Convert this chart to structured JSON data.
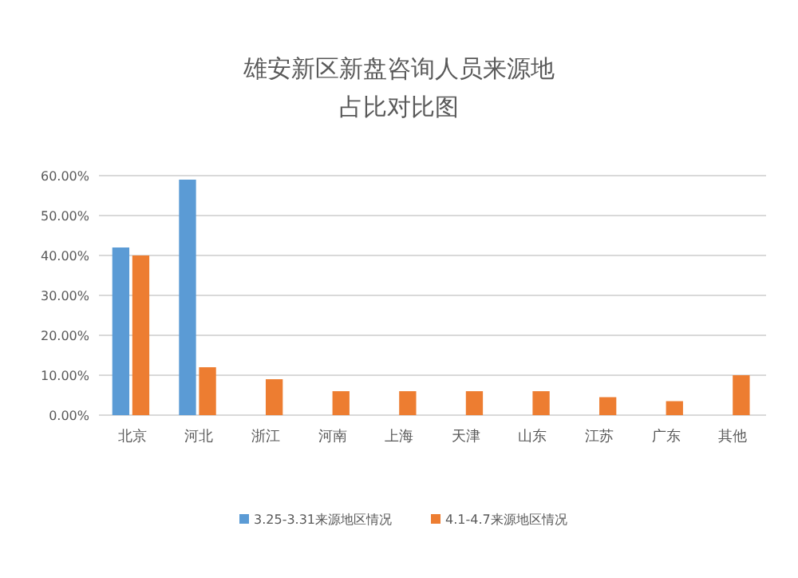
{
  "chart_data": {
    "type": "bar",
    "title": "雄安新区新盘咨询人员来源地",
    "subtitle": "占比对比图",
    "categories": [
      "北京",
      "河北",
      "浙江",
      "河南",
      "上海",
      "天津",
      "山东",
      "江苏",
      "广东",
      "其他"
    ],
    "series": [
      {
        "name": "3.25-3.31来源地区情况",
        "color": "#5b9bd5",
        "values": [
          42,
          59,
          0,
          0,
          0,
          0,
          0,
          0,
          0,
          0
        ]
      },
      {
        "name": "4.1-4.7来源地区情况",
        "color": "#ed7d31",
        "values": [
          40,
          12,
          9,
          6,
          6,
          6,
          6,
          4.5,
          3.5,
          10
        ]
      }
    ],
    "ylim": [
      0,
      60
    ],
    "yticks": [
      {
        "value": 0,
        "label": "0.00%"
      },
      {
        "value": 10,
        "label": "10.00%"
      },
      {
        "value": 20,
        "label": "20.00%"
      },
      {
        "value": 30,
        "label": "30.00%"
      },
      {
        "value": 40,
        "label": "40.00%"
      },
      {
        "value": 50,
        "label": "50.00%"
      },
      {
        "value": 60,
        "label": "60.00%"
      }
    ],
    "grid": "y",
    "legend": "bottom"
  }
}
